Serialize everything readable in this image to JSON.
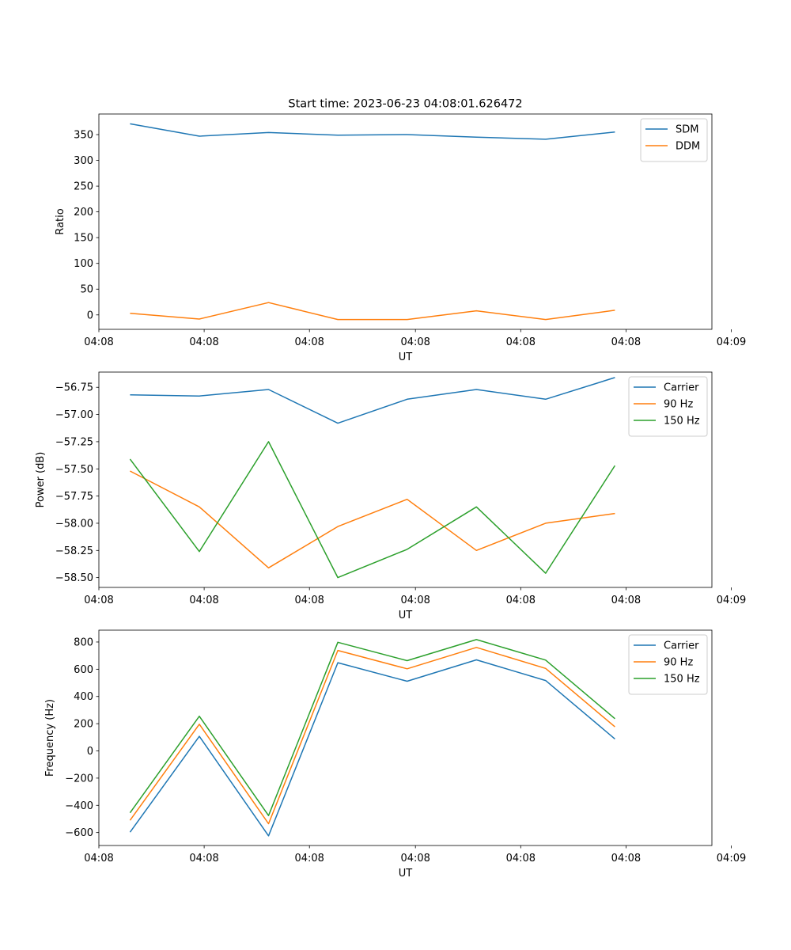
{
  "figure": {
    "title": "Start time: 2023-06-23 04:08:01.626472"
  },
  "colors": {
    "blue": "#1f77b4",
    "orange": "#ff7f0e",
    "green": "#2ca02c"
  },
  "chart_data": [
    {
      "type": "line",
      "title": "Start time: 2023-06-23 04:08:01.626472",
      "xlabel": "UT",
      "ylabel": "Ratio",
      "x_tick_labels": [
        "04:08",
        "04:08",
        "04:08",
        "04:08",
        "04:08",
        "04:08",
        "04:09"
      ],
      "x": [
        1,
        2,
        3,
        4,
        5,
        6,
        7,
        8
      ],
      "xlim": [
        0.55,
        9.4
      ],
      "x_ticks": [
        0.55,
        2.07,
        3.59,
        5.12,
        6.64,
        8.16,
        9.68
      ],
      "ylim": [
        -28,
        390
      ],
      "y_ticks": [
        0,
        50,
        100,
        150,
        200,
        250,
        300,
        350
      ],
      "y_tick_labels": [
        "0",
        "50",
        "100",
        "150",
        "200",
        "250",
        "300",
        "350"
      ],
      "legend": "top-right",
      "series": [
        {
          "name": "SDM",
          "color": "#1f77b4",
          "values": [
            371,
            347,
            354,
            349,
            350,
            345,
            341,
            355
          ]
        },
        {
          "name": "DDM",
          "color": "#ff7f0e",
          "values": [
            3,
            -8,
            24,
            -9,
            -9,
            8,
            -9,
            9
          ]
        }
      ]
    },
    {
      "type": "line",
      "title": "",
      "xlabel": "UT",
      "ylabel": "Power (dB)",
      "x_tick_labels": [
        "04:08",
        "04:08",
        "04:08",
        "04:08",
        "04:08",
        "04:08",
        "04:09"
      ],
      "x": [
        1,
        2,
        3,
        4,
        5,
        6,
        7,
        8
      ],
      "xlim": [
        0.55,
        9.4
      ],
      "x_ticks": [
        0.55,
        2.07,
        3.59,
        5.12,
        6.64,
        8.16,
        9.68
      ],
      "ylim": [
        -58.59,
        -56.61
      ],
      "y_ticks": [
        -58.5,
        -58.25,
        -58.0,
        -57.75,
        -57.5,
        -57.25,
        -57.0,
        -56.75
      ],
      "y_tick_labels": [
        "−58.50",
        "−58.25",
        "−58.00",
        "−57.75",
        "−57.50",
        "−57.25",
        "−57.00",
        "−56.75"
      ],
      "legend": "top-right",
      "series": [
        {
          "name": "Carrier",
          "color": "#1f77b4",
          "values": [
            -56.82,
            -56.83,
            -56.77,
            -57.08,
            -56.86,
            -56.77,
            -56.86,
            -56.66
          ]
        },
        {
          "name": "90 Hz",
          "color": "#ff7f0e",
          "values": [
            -57.52,
            -57.85,
            -58.41,
            -58.03,
            -57.78,
            -58.25,
            -58.0,
            -57.91
          ]
        },
        {
          "name": "150 Hz",
          "color": "#2ca02c",
          "values": [
            -57.41,
            -58.26,
            -57.25,
            -58.5,
            -58.24,
            -57.85,
            -58.46,
            -57.47
          ]
        }
      ]
    },
    {
      "type": "line",
      "title": "",
      "xlabel": "UT",
      "ylabel": "Frequency (Hz)",
      "x_tick_labels": [
        "04:08",
        "04:08",
        "04:08",
        "04:08",
        "04:08",
        "04:08",
        "04:09"
      ],
      "x": [
        1,
        2,
        3,
        4,
        5,
        6,
        7,
        8
      ],
      "xlim": [
        0.55,
        9.4
      ],
      "x_ticks": [
        0.55,
        2.07,
        3.59,
        5.12,
        6.64,
        8.16,
        9.68
      ],
      "ylim": [
        -695,
        887
      ],
      "y_ticks": [
        -600,
        -400,
        -200,
        0,
        200,
        400,
        600,
        800
      ],
      "y_tick_labels": [
        "−600",
        "−400",
        "−200",
        "0",
        "200",
        "400",
        "600",
        "800"
      ],
      "legend": "top-right",
      "series": [
        {
          "name": "Carrier",
          "color": "#1f77b4",
          "values": [
            -597,
            107,
            -624,
            648,
            512,
            669,
            517,
            88
          ]
        },
        {
          "name": "90 Hz",
          "color": "#ff7f0e",
          "values": [
            -510,
            196,
            -535,
            738,
            603,
            760,
            606,
            177
          ]
        },
        {
          "name": "150 Hz",
          "color": "#2ca02c",
          "values": [
            -455,
            255,
            -475,
            798,
            663,
            818,
            667,
            237
          ]
        }
      ]
    }
  ]
}
